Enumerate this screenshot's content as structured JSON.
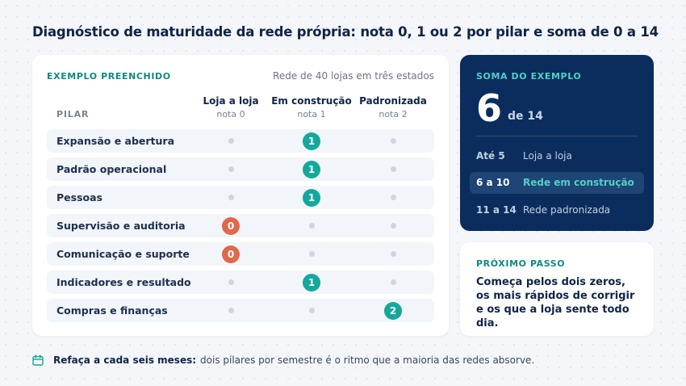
{
  "title": "Diagnóstico de maturidade da rede própria: nota 0, 1 ou 2 por pilar e soma de 0 a 14",
  "example": {
    "kicker": "EXEMPLO PREENCHIDO",
    "subtitle": "Rede de 40 lojas em três estados",
    "pilar_header": "PILAR",
    "columns": [
      {
        "name": "Loja a loja",
        "sub": "nota 0"
      },
      {
        "name": "Em construção",
        "sub": "nota 1"
      },
      {
        "name": "Padronizada",
        "sub": "nota 2"
      }
    ],
    "rows": [
      {
        "label": "Expansão e abertura",
        "score": 1
      },
      {
        "label": "Padrão operacional",
        "score": 1
      },
      {
        "label": "Pessoas",
        "score": 1
      },
      {
        "label": "Supervisão e auditoria",
        "score": 0
      },
      {
        "label": "Comunicação e suporte",
        "score": 0
      },
      {
        "label": "Indicadores e resultado",
        "score": 1
      },
      {
        "label": "Compras e finanças",
        "score": 2
      }
    ]
  },
  "score": {
    "kicker": "SOMA DO EXEMPLO",
    "value": "6",
    "of": "de 14",
    "bands": [
      {
        "range": "Até 5",
        "name": "Loja a loja",
        "active": false
      },
      {
        "range": "6 a 10",
        "name": "Rede em construção",
        "active": true
      },
      {
        "range": "11 a 14",
        "name": "Rede padronizada",
        "active": false
      }
    ]
  },
  "next_step": {
    "kicker": "PRÓXIMO PASSO",
    "text": "Começa pelos dois zeros, os mais rápidos de corrigir e os que a loja sente todo dia."
  },
  "footer": {
    "lead": "Refaça a cada seis meses:",
    "text": "dois pilares por semestre é o ritmo que a maioria das redes absorve."
  },
  "colors": {
    "score_0": "#e0684b",
    "score_1": "#14a89c",
    "score_2": "#14a89c",
    "navy": "#0b2d5e",
    "teal": "#0e8a80"
  },
  "icons": {
    "footer": "calendar-icon"
  }
}
